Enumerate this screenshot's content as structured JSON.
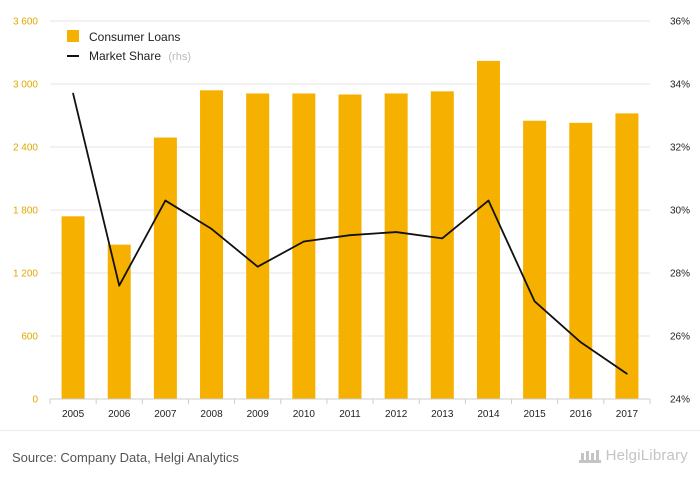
{
  "chart_data": {
    "type": "bar",
    "categories": [
      "2005",
      "2006",
      "2007",
      "2008",
      "2009",
      "2010",
      "2011",
      "2012",
      "2013",
      "2014",
      "2015",
      "2016",
      "2017"
    ],
    "series": [
      {
        "name": "Consumer Loans",
        "type": "bar",
        "axis": "left",
        "color": "#f5b000",
        "values": [
          1740,
          1470,
          2490,
          2940,
          2910,
          2910,
          2900,
          2910,
          2930,
          3220,
          2650,
          2630,
          2720
        ]
      },
      {
        "name": "Market Share",
        "name_suffix": "(rhs)",
        "type": "line",
        "axis": "right",
        "color": "#111111",
        "values": [
          33.7,
          27.6,
          30.3,
          29.4,
          28.2,
          29.0,
          29.2,
          29.3,
          29.1,
          30.3,
          27.1,
          25.8,
          24.8
        ]
      }
    ],
    "left_axis": {
      "ticks": [
        "0",
        "600",
        "1 200",
        "1 800",
        "2 400",
        "3 000",
        "3 600"
      ],
      "min": 0,
      "max": 3600,
      "color": "#e0a800"
    },
    "right_axis": {
      "ticks": [
        "24%",
        "26%",
        "28%",
        "30%",
        "32%",
        "34%",
        "36%"
      ],
      "min": 24,
      "max": 36
    },
    "grid": true,
    "legend_position": "top-left"
  },
  "footer": {
    "source": "Source: Company Data, Helgi Analytics",
    "brand": "HelgiLibrary"
  }
}
